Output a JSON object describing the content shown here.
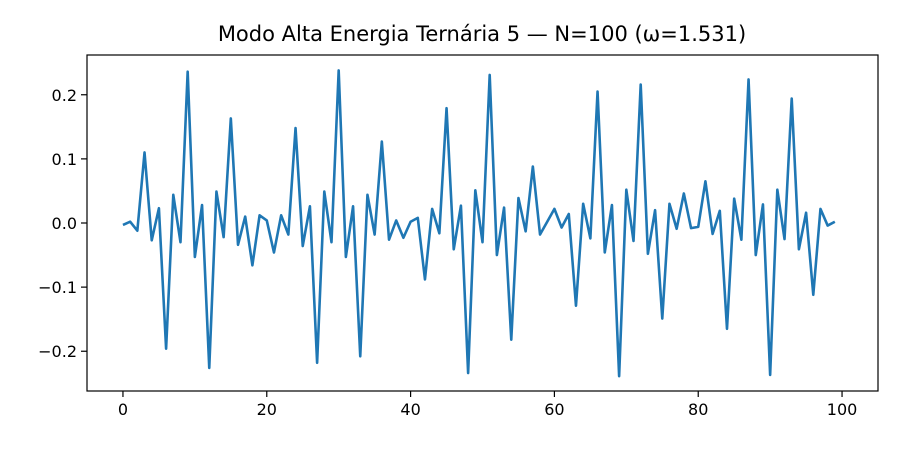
{
  "chart_data": {
    "type": "line",
    "title": "Modo Alta Energia Ternária 5 — N=100 (ω=1.531)",
    "xlabel": "",
    "ylabel": "",
    "xlim": [
      -5,
      105
    ],
    "ylim": [
      -0.262,
      0.262
    ],
    "x_ticks": [
      0,
      20,
      40,
      60,
      80,
      100
    ],
    "x_tick_labels": [
      "0",
      "20",
      "40",
      "60",
      "80",
      "100"
    ],
    "y_ticks": [
      -0.2,
      -0.1,
      0.0,
      0.1,
      0.2
    ],
    "y_tick_labels": [
      "−0.2",
      "−0.1",
      "0.0",
      "0.1",
      "0.2"
    ],
    "grid": false,
    "colors": {
      "series": "#1f77b4"
    },
    "series": [
      {
        "x": [
          0,
          1,
          2,
          3,
          4,
          5,
          6,
          7,
          8,
          9,
          10,
          11,
          12,
          13,
          14,
          15,
          16,
          17,
          18,
          19,
          20,
          21,
          22,
          23,
          24,
          25,
          26,
          27,
          28,
          29,
          30,
          31,
          32,
          33,
          34,
          35,
          36,
          37,
          38,
          39,
          40,
          41,
          42,
          43,
          44,
          45,
          46,
          47,
          48,
          49,
          50,
          51,
          52,
          53,
          54,
          55,
          56,
          57,
          58,
          59,
          60,
          61,
          62,
          63,
          64,
          65,
          66,
          67,
          68,
          69,
          70,
          71,
          72,
          73,
          74,
          75,
          76,
          77,
          78,
          79,
          80,
          81,
          82,
          83,
          84,
          85,
          86,
          87,
          88,
          89,
          90,
          91,
          92,
          93,
          94,
          95,
          96,
          97,
          98,
          99
        ],
        "values": [
          -0.003,
          0.002,
          -0.012,
          0.11,
          -0.027,
          0.023,
          -0.196,
          0.044,
          -0.03,
          0.236,
          -0.053,
          0.028,
          -0.226,
          0.049,
          -0.022,
          0.163,
          -0.034,
          0.01,
          -0.066,
          0.012,
          0.004,
          -0.046,
          0.012,
          -0.018,
          0.148,
          -0.036,
          0.026,
          -0.218,
          0.049,
          -0.03,
          0.238,
          -0.053,
          0.026,
          -0.208,
          0.044,
          -0.018,
          0.127,
          -0.026,
          0.004,
          -0.023,
          0.002,
          0.008,
          -0.088,
          0.022,
          -0.016,
          0.179,
          -0.041,
          0.027,
          -0.234,
          0.051,
          -0.03,
          0.231,
          -0.05,
          0.024,
          -0.182,
          0.039,
          -0.013,
          0.088,
          -0.018,
          0.002,
          0.022,
          -0.007,
          0.014,
          -0.129,
          0.03,
          -0.024,
          0.205,
          -0.046,
          0.028,
          -0.239,
          0.052,
          -0.028,
          0.216,
          -0.048,
          0.02,
          -0.149,
          0.03,
          -0.009,
          0.046,
          -0.008,
          -0.006,
          0.065,
          -0.017,
          0.019,
          -0.165,
          0.038,
          -0.026,
          0.224,
          -0.05,
          0.029,
          -0.237,
          0.052,
          -0.025,
          0.194,
          -0.041,
          0.016,
          -0.112,
          0.022,
          -0.004,
          0.002
        ]
      }
    ]
  }
}
